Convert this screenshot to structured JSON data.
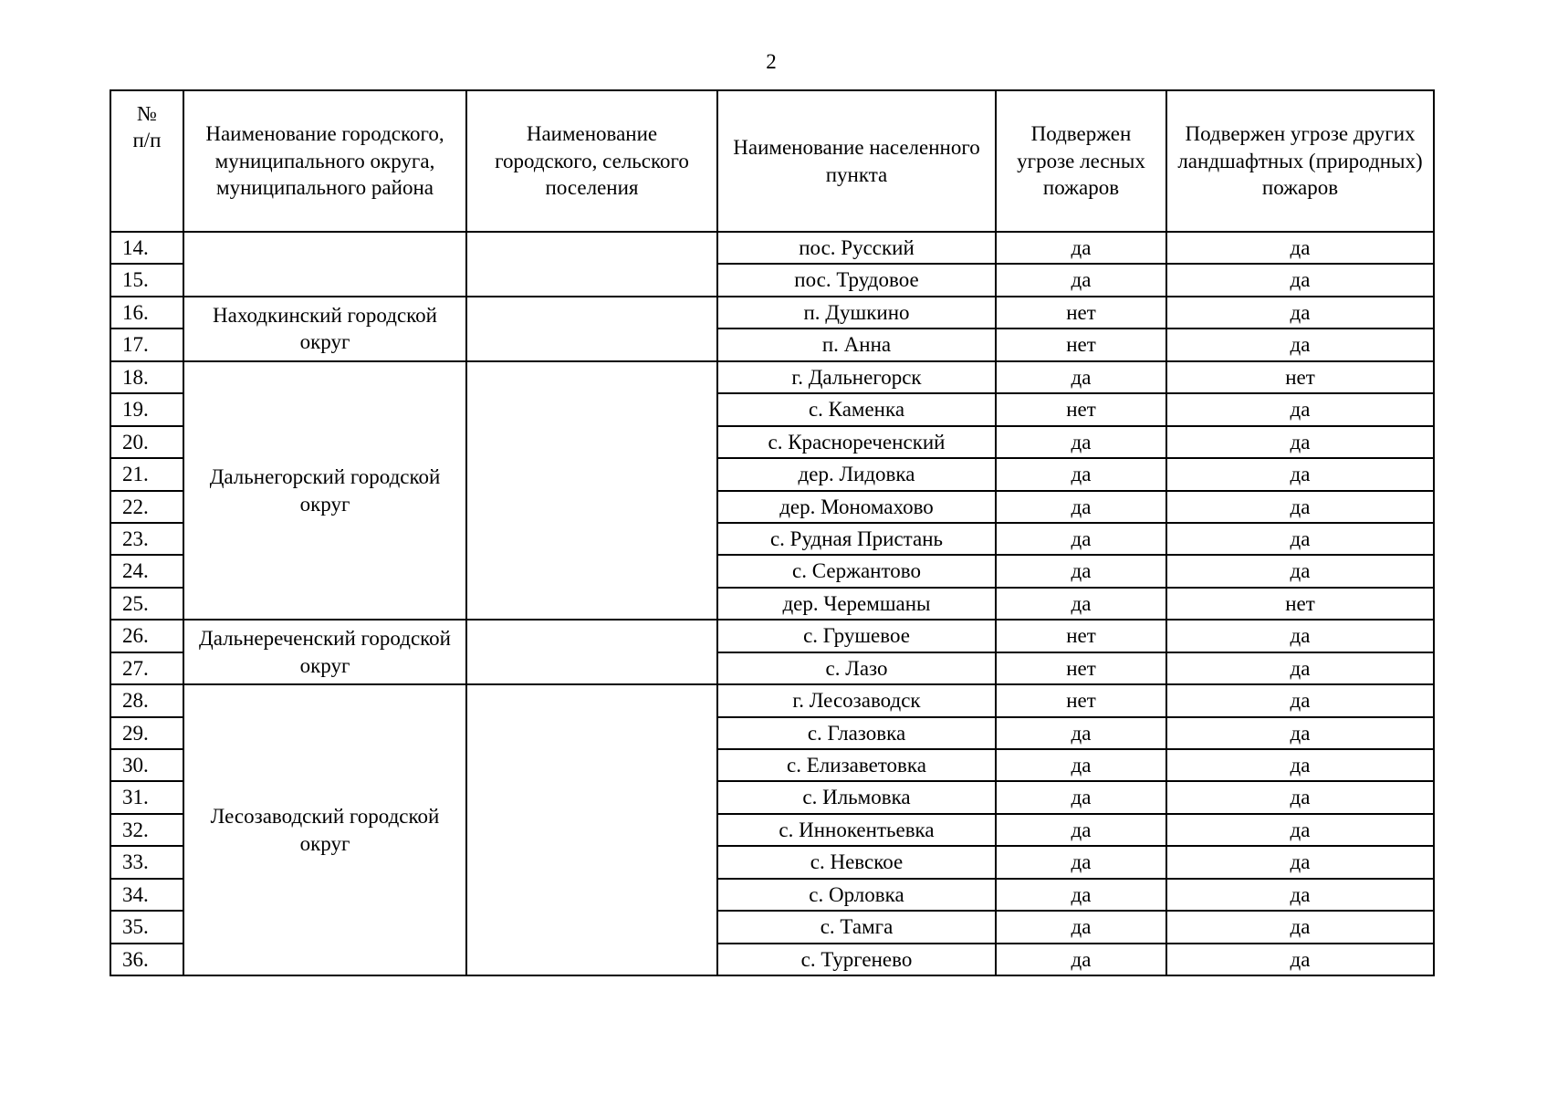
{
  "page": {
    "number": "2"
  },
  "table": {
    "headers": {
      "num": "№\nп/п",
      "district": "Наименование городского, муниципального округа, муниципального района",
      "settlement": "Наименование городского, сельского поселения",
      "locality": "Наименование населенного пункта",
      "forest": "Подвержен угрозе лесных пожаров",
      "landscape": "Подвержен угрозе других ландшафтных (природных) пожаров"
    },
    "groups": [
      {
        "district": "",
        "settlement": "",
        "rows": [
          {
            "num": "14.",
            "locality": "пос. Русский",
            "forest_fire": "да",
            "landscape_fire": "да"
          },
          {
            "num": "15.",
            "locality": "пос. Трудовое",
            "forest_fire": "да",
            "landscape_fire": "да"
          }
        ]
      },
      {
        "district": "Находкинский городской округ",
        "settlement": "",
        "rows": [
          {
            "num": "16.",
            "locality": "п. Душкино",
            "forest_fire": "нет",
            "landscape_fire": "да"
          },
          {
            "num": "17.",
            "locality": "п. Анна",
            "forest_fire": "нет",
            "landscape_fire": "да"
          }
        ]
      },
      {
        "district": "Дальнегорский городской округ",
        "settlement": "",
        "rows": [
          {
            "num": "18.",
            "locality": "г. Дальнегорск",
            "forest_fire": "да",
            "landscape_fire": "нет"
          },
          {
            "num": "19.",
            "locality": "с. Каменка",
            "forest_fire": "нет",
            "landscape_fire": "да"
          },
          {
            "num": "20.",
            "locality": "с. Краснореченский",
            "forest_fire": "да",
            "landscape_fire": "да"
          },
          {
            "num": "21.",
            "locality": "дер. Лидовка",
            "forest_fire": "да",
            "landscape_fire": "да"
          },
          {
            "num": "22.",
            "locality": "дер. Мономахово",
            "forest_fire": "да",
            "landscape_fire": "да"
          },
          {
            "num": "23.",
            "locality": "с. Рудная Пристань",
            "forest_fire": "да",
            "landscape_fire": "да"
          },
          {
            "num": "24.",
            "locality": "с. Сержантово",
            "forest_fire": "да",
            "landscape_fire": "да"
          },
          {
            "num": "25.",
            "locality": "дер. Черемшаны",
            "forest_fire": "да",
            "landscape_fire": "нет"
          }
        ]
      },
      {
        "district": "Дальнереченский городской округ",
        "settlement": "",
        "rows": [
          {
            "num": "26.",
            "locality": "с. Грушевое",
            "forest_fire": "нет",
            "landscape_fire": "да"
          },
          {
            "num": "27.",
            "locality": "с. Лазо",
            "forest_fire": "нет",
            "landscape_fire": "да"
          }
        ]
      },
      {
        "district": "Лесозаводский городской округ",
        "settlement": "",
        "rows": [
          {
            "num": "28.",
            "locality": "г. Лесозаводск",
            "forest_fire": "нет",
            "landscape_fire": "да"
          },
          {
            "num": "29.",
            "locality": "с. Глазовка",
            "forest_fire": "да",
            "landscape_fire": "да"
          },
          {
            "num": "30.",
            "locality": "с. Елизаветовка",
            "forest_fire": "да",
            "landscape_fire": "да"
          },
          {
            "num": "31.",
            "locality": "с. Ильмовка",
            "forest_fire": "да",
            "landscape_fire": "да"
          },
          {
            "num": "32.",
            "locality": "с. Иннокентьевка",
            "forest_fire": "да",
            "landscape_fire": "да"
          },
          {
            "num": "33.",
            "locality": "с. Невское",
            "forest_fire": "да",
            "landscape_fire": "да"
          },
          {
            "num": "34.",
            "locality": "с. Орловка",
            "forest_fire": "да",
            "landscape_fire": "да"
          },
          {
            "num": "35.",
            "locality": "с. Тамга",
            "forest_fire": "да",
            "landscape_fire": "да"
          },
          {
            "num": "36.",
            "locality": "с. Тургенево",
            "forest_fire": "да",
            "landscape_fire": "да"
          }
        ]
      }
    ]
  }
}
